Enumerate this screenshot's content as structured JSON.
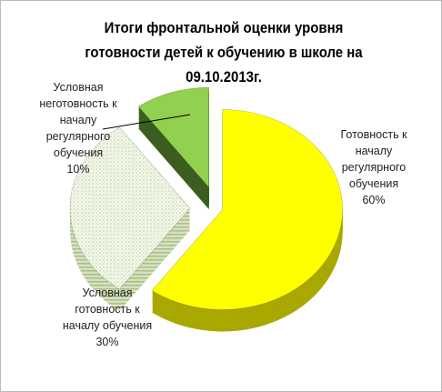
{
  "chart_data": {
    "type": "pie3d",
    "title": "Итоги фронтальной оценки уровня готовности  детей к обучению в школе на 09.10.2013г.",
    "categories": [
      "Готовность к началу регулярного обучения",
      "Условная готовность к началу обучения",
      "Условная неготовность к началу регулярного обучения"
    ],
    "values": [
      60,
      30,
      10
    ],
    "value_labels": [
      "60%",
      "30%",
      "10%"
    ],
    "colors": [
      "#ffff00",
      "#eef3e2",
      "#92d050"
    ]
  }
}
